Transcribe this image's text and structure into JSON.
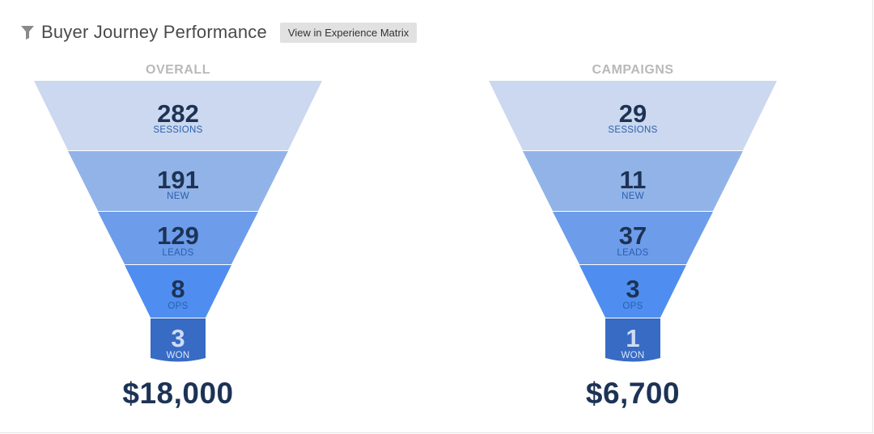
{
  "header": {
    "icon": "filter-icon",
    "title": "Buyer Journey Performance",
    "matrix_button_label": "View in Experience Matrix"
  },
  "colors": {
    "stage1": "#cbd8ef",
    "stage2": "#92b3e8",
    "stage3": "#6d9ceb",
    "stage4": "#4f8ef0",
    "stage5": "#376bc4",
    "text_dark": "#1d3355",
    "caption": "#2a5fae"
  },
  "funnels": [
    {
      "label": "OVERALL",
      "stages": [
        {
          "value": "282",
          "caption": "SESSIONS"
        },
        {
          "value": "191",
          "caption": "NEW"
        },
        {
          "value": "129",
          "caption": "LEADS"
        },
        {
          "value": "8",
          "caption": "OPS"
        },
        {
          "value": "3",
          "caption": "WON"
        }
      ],
      "revenue": "$18,000"
    },
    {
      "label": "CAMPAIGNS",
      "stages": [
        {
          "value": "29",
          "caption": "SESSIONS"
        },
        {
          "value": "11",
          "caption": "NEW"
        },
        {
          "value": "37",
          "caption": "LEADS"
        },
        {
          "value": "3",
          "caption": "OPS"
        },
        {
          "value": "1",
          "caption": "WON"
        }
      ],
      "revenue": "$6,700"
    }
  ]
}
